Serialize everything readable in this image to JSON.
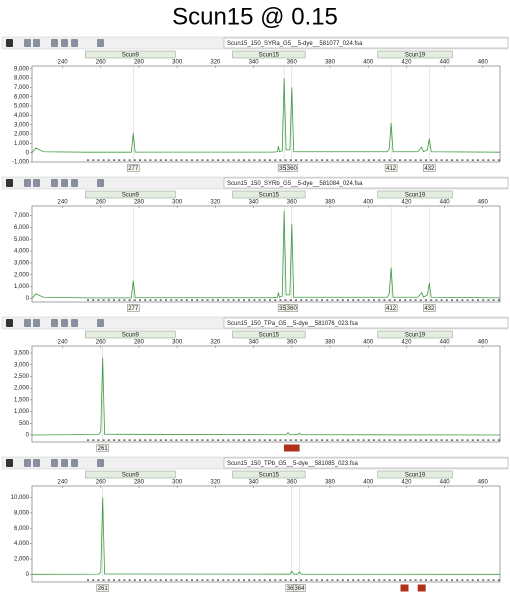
{
  "title": "Scun15 @ 0.15",
  "chart_data": [
    {
      "type": "line",
      "title": "Scun15_150_SYRa_G5__5-dye__581077_024.fsa",
      "markers": [
        {
          "name": "Scun9",
          "range": [
            252,
            299
          ]
        },
        {
          "name": "Scun15",
          "range": [
            329,
            367
          ]
        },
        {
          "name": "Scun19",
          "range": [
            405,
            444
          ]
        }
      ],
      "xlim": [
        224,
        469
      ],
      "xticks": [
        240,
        260,
        280,
        300,
        320,
        340,
        360,
        380,
        400,
        420,
        440,
        460
      ],
      "ylim": [
        -1000,
        9300
      ],
      "yticks": [
        {
          "value": -1000,
          "label": "-1,000"
        },
        0,
        {
          "value": 1000,
          "label": "1,000"
        },
        {
          "value": 2000,
          "label": "2,000"
        },
        {
          "value": 3000,
          "label": "3,000"
        },
        {
          "value": 4000,
          "label": "4,000"
        },
        {
          "value": 5000,
          "label": "5,000"
        },
        {
          "value": 6000,
          "label": "6,000"
        },
        {
          "value": 7000,
          "label": "7,000"
        },
        {
          "value": 8000,
          "label": "8,000"
        },
        {
          "value": 9000,
          "label": "9,000"
        }
      ],
      "x": [
        224,
        226,
        230,
        252,
        276,
        277,
        278,
        350,
        352.5,
        353,
        353.5,
        355,
        356,
        357,
        359,
        360,
        361,
        410,
        411,
        412,
        413,
        426,
        428,
        429,
        431,
        432,
        433,
        469
      ],
      "series": [
        {
          "color": "#3f9a3f",
          "values": [
            0,
            500,
            100,
            50,
            50,
            2100,
            60,
            60,
            100,
            700,
            100,
            200,
            8000,
            300,
            300,
            7000,
            100,
            100,
            400,
            3200,
            100,
            100,
            600,
            100,
            300,
            1500,
            100,
            50
          ]
        }
      ],
      "allele_labels": [
        "277",
        "356",
        "360",
        "412",
        "432"
      ],
      "allele_x": [
        277,
        356,
        360,
        412,
        432
      ]
    },
    {
      "type": "line",
      "title": "Scun15_150_SYRb_G5__5-dye__581084_024.fsa",
      "markers": [
        {
          "name": "Scun9",
          "range": [
            252,
            299
          ]
        },
        {
          "name": "Scun15",
          "range": [
            329,
            367
          ]
        },
        {
          "name": "Scun19",
          "range": [
            405,
            444
          ]
        }
      ],
      "xlim": [
        224,
        469
      ],
      "xticks": [
        240,
        260,
        280,
        300,
        320,
        340,
        360,
        380,
        400,
        420,
        440,
        460
      ],
      "ylim": [
        -300,
        7800
      ],
      "yticks": [
        0,
        {
          "value": 1000,
          "label": "1,000"
        },
        {
          "value": 2000,
          "label": "2,000"
        },
        {
          "value": 3000,
          "label": "3,000"
        },
        {
          "value": 4000,
          "label": "4,000"
        },
        {
          "value": 5000,
          "label": "5,000"
        },
        {
          "value": 6000,
          "label": "6,000"
        },
        {
          "value": 7000,
          "label": "7,000"
        }
      ],
      "x": [
        224,
        226,
        230,
        252,
        276,
        277,
        278,
        350,
        352.5,
        353,
        353.5,
        355,
        356,
        357,
        359,
        360,
        361,
        410,
        411,
        412,
        413,
        426,
        428,
        429,
        431,
        432,
        433,
        469
      ],
      "series": [
        {
          "color": "#3f9a3f",
          "values": [
            0,
            400,
            100,
            50,
            50,
            1500,
            60,
            60,
            100,
            500,
            100,
            200,
            7400,
            300,
            300,
            6300,
            100,
            100,
            400,
            2600,
            100,
            100,
            500,
            100,
            300,
            1300,
            100,
            50
          ]
        }
      ],
      "allele_labels": [
        "277",
        "356",
        "360",
        "412",
        "432"
      ],
      "allele_x": [
        277,
        356,
        360,
        412,
        432
      ]
    },
    {
      "type": "line",
      "title": "Scun15_150_TPa_G5__5-dye__581076_023.fsa",
      "markers": [
        {
          "name": "Scun9",
          "range": [
            252,
            299
          ]
        },
        {
          "name": "Scun15",
          "range": [
            329,
            367
          ]
        },
        {
          "name": "Scun19",
          "range": [
            405,
            444
          ]
        }
      ],
      "xlim": [
        224,
        469
      ],
      "xticks": [
        240,
        260,
        280,
        300,
        320,
        340,
        360,
        380,
        400,
        420,
        440,
        460
      ],
      "ylim": [
        -300,
        3800
      ],
      "yticks": [
        0,
        500,
        {
          "value": 1000,
          "label": "1,000"
        },
        {
          "value": 1500,
          "label": "1,500"
        },
        {
          "value": 2000,
          "label": "2,000"
        },
        {
          "value": 2500,
          "label": "2,500"
        },
        {
          "value": 3000,
          "label": "3,000"
        },
        {
          "value": 3500,
          "label": "3,500"
        }
      ],
      "x": [
        224,
        259,
        260,
        261,
        262,
        357,
        358,
        359,
        363,
        364,
        365,
        469
      ],
      "series": [
        {
          "color": "#3f9a3f",
          "values": [
            0,
            20,
            150,
            3300,
            30,
            10,
            100,
            10,
            10,
            80,
            10,
            0
          ]
        }
      ],
      "allele_labels": [
        "261"
      ],
      "allele_x": [
        261
      ]
    },
    {
      "type": "line",
      "title": "Scun15_150_TPb_G5__5-dye__581085_023.fsa",
      "markers": [
        {
          "name": "Scun9",
          "range": [
            252,
            299
          ]
        },
        {
          "name": "Scun15",
          "range": [
            329,
            367
          ]
        },
        {
          "name": "Scun19",
          "range": [
            405,
            444
          ]
        }
      ],
      "xlim": [
        224,
        469
      ],
      "xticks": [
        240,
        260,
        280,
        300,
        320,
        340,
        360,
        380,
        400,
        420,
        440,
        460
      ],
      "ylim": [
        -1000,
        11500
      ],
      "yticks": [
        0,
        {
          "value": 2000,
          "label": "2,000"
        },
        {
          "value": 4000,
          "label": "4,000"
        },
        {
          "value": 6000,
          "label": "6,000"
        },
        {
          "value": 8000,
          "label": "8,000"
        },
        {
          "value": 10000,
          "label": "10,000"
        }
      ],
      "x": [
        224,
        259,
        260,
        261,
        262,
        359,
        360,
        361,
        363,
        364,
        365,
        469
      ],
      "series": [
        {
          "color": "#3f9a3f",
          "values": [
            0,
            30,
            300,
            10000,
            50,
            20,
            400,
            20,
            20,
            300,
            20,
            0
          ]
        }
      ],
      "allele_labels": [
        "261",
        "360",
        "364"
      ],
      "allele_x": [
        261,
        360,
        364
      ]
    }
  ]
}
